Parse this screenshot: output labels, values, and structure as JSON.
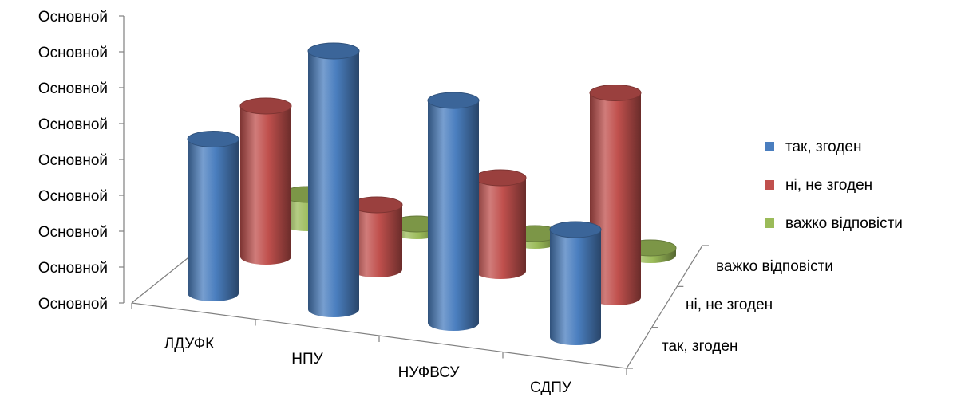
{
  "chart_data": {
    "type": "bar",
    "subtype": "3d-cylinder",
    "title": "",
    "xlabel": "",
    "ylabel": "",
    "categories": [
      "ЛДУФК",
      "НПУ",
      "НУФВСУ",
      "СДПУ"
    ],
    "y_tick_labels": [
      "Основной",
      "Основной",
      "Основной",
      "Основной",
      "Основной",
      "Основной",
      "Основной",
      "Основной",
      "Основной"
    ],
    "ylim": [
      0,
      8
    ],
    "grid": false,
    "legend_position": "right",
    "series": [
      {
        "name": "так, згоден",
        "color": "#4a7ebf",
        "values": [
          4.3,
          7.2,
          6.2,
          3.0
        ]
      },
      {
        "name": "ні, не згоден",
        "color": "#c0504d",
        "values": [
          4.2,
          1.8,
          2.6,
          5.7
        ]
      },
      {
        "name": "важко відповісти",
        "color": "#9bbb59",
        "values": [
          0.8,
          0.2,
          0.2,
          0.2
        ]
      }
    ]
  }
}
